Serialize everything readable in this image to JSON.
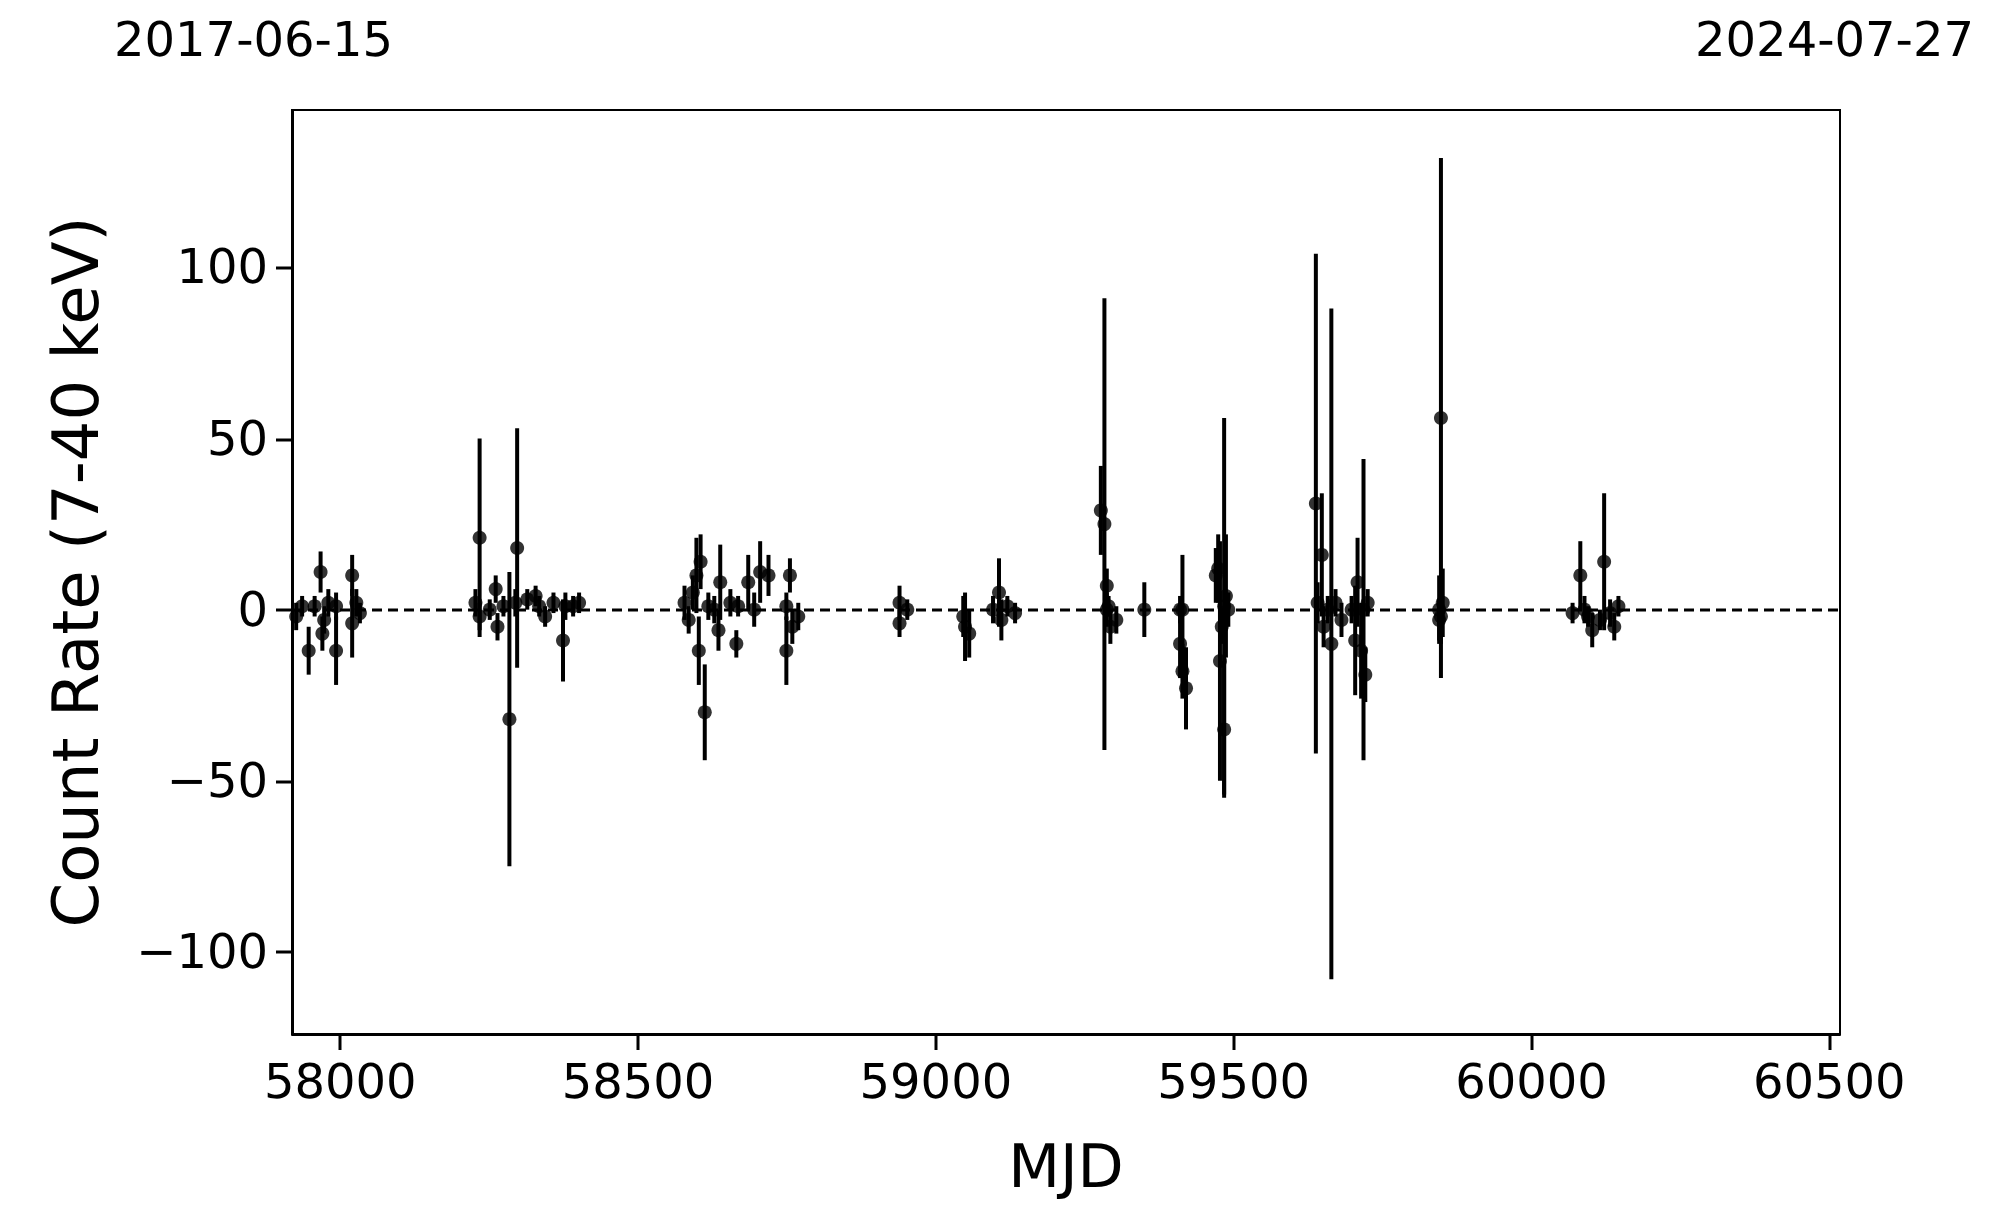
{
  "chart_data": {
    "type": "scatter",
    "xlabel": "MJD",
    "ylabel": "Count Rate (7-40 keV)",
    "annotations": [
      "2017-06-15",
      "2024-07-27"
    ],
    "xlim": [
      57919,
      60518
    ],
    "ylim": [
      -124,
      146
    ],
    "xticks": [
      58000,
      58500,
      59000,
      59500,
      60000,
      60500
    ],
    "yticks": [
      -100,
      -50,
      0,
      50,
      100
    ],
    "grid": false,
    "marker": "circle",
    "ref_lines": [
      {
        "axis": "y",
        "value": 0,
        "label": null,
        "color": "#000000",
        "line_style": "dashed"
      }
    ],
    "series": [
      {
        "color": "#000000",
        "x": [
          57926,
          57936,
          57947,
          57957,
          57967,
          57970,
          57973,
          57980,
          57993,
          57993,
          58020,
          58020,
          58027,
          58033,
          58227,
          58234,
          58234,
          58251,
          58261,
          58264,
          58274,
          58284,
          58294,
          58297,
          58314,
          58328,
          58334,
          58344,
          58358,
          58374,
          58378,
          58391,
          58401,
          58578,
          58585,
          58592,
          58598,
          58602,
          58605,
          58612,
          58618,
          58628,
          58635,
          58638,
          58655,
          58665,
          58668,
          58685,
          58695,
          58705,
          58719,
          58749,
          58749,
          58755,
          58759,
          58769,
          58939,
          58939,
          58952,
          59046,
          59049,
          59056,
          59096,
          59106,
          59110,
          59120,
          59133,
          59277,
          59283,
          59287,
          59287,
          59293,
          59303,
          59290,
          59350,
          59410,
          59410,
          59414,
          59420,
          59414,
          59470,
          59474,
          59477,
          59484,
          59484,
          59487,
          59491,
          59480,
          59638,
          59648,
          59641,
          59651,
          59658,
          59664,
          59671,
          59681,
          59698,
          59704,
          59708,
          59714,
          59718,
          59721,
          59725,
          59848,
          59845,
          59848,
          59851,
          59845,
          60069,
          60082,
          60089,
          60095,
          60102,
          60115,
          60122,
          60132,
          60139,
          60146
        ],
        "values": [
          -2,
          1,
          -12,
          1,
          11,
          -7,
          -3,
          2,
          -12,
          1,
          10,
          -4,
          2,
          -1,
          2,
          21,
          -2,
          0,
          6,
          -5,
          1,
          -32,
          2,
          18,
          3,
          4,
          1,
          -2,
          2,
          -9,
          1,
          1,
          2,
          2,
          -3,
          5,
          10,
          -12,
          14,
          -30,
          1,
          0,
          -6,
          8,
          2,
          -10,
          1,
          8,
          0,
          11,
          10,
          -12,
          1,
          10,
          -5,
          -2,
          2,
          -4,
          0,
          -2,
          -5,
          -7,
          0,
          5,
          -3,
          1,
          -1,
          29,
          25,
          7,
          0,
          -5,
          -3,
          1,
          0,
          0,
          -10,
          -18,
          -23,
          0,
          10,
          12,
          -15,
          -35,
          1,
          4,
          0,
          -5,
          31,
          16,
          2,
          -5,
          0,
          -10,
          2,
          -3,
          0,
          -9,
          8,
          -12,
          0,
          -19,
          2,
          56,
          0,
          -2,
          2,
          -3,
          -1,
          10,
          0,
          -2,
          -6,
          -3,
          14,
          -1,
          -5,
          1
        ],
        "errors": [
          4,
          3,
          7,
          3,
          6,
          5,
          4,
          4,
          10,
          4,
          6,
          10,
          4,
          3,
          4,
          29,
          4,
          3,
          4,
          4,
          3,
          43,
          4,
          35,
          3,
          3,
          3,
          3,
          3,
          12,
          4,
          3,
          3,
          5,
          4,
          5,
          11,
          10,
          8,
          14,
          4,
          4,
          6,
          11,
          4,
          4,
          3,
          8,
          5,
          9,
          6,
          10,
          4,
          5,
          5,
          4,
          5,
          4,
          3,
          6,
          10,
          7,
          4,
          10,
          6,
          3,
          3,
          13,
          66,
          5,
          5,
          5,
          4,
          3,
          8,
          4,
          10,
          8,
          12,
          16,
          8,
          10,
          35,
          20,
          55,
          18,
          5,
          5,
          73,
          18,
          6,
          6,
          4,
          98,
          4,
          5,
          4,
          16,
          13,
          14,
          44,
          8,
          4,
          76,
          10,
          8,
          10,
          6,
          3,
          10,
          4,
          3,
          5,
          3,
          20,
          4,
          4,
          3
        ]
      }
    ]
  }
}
